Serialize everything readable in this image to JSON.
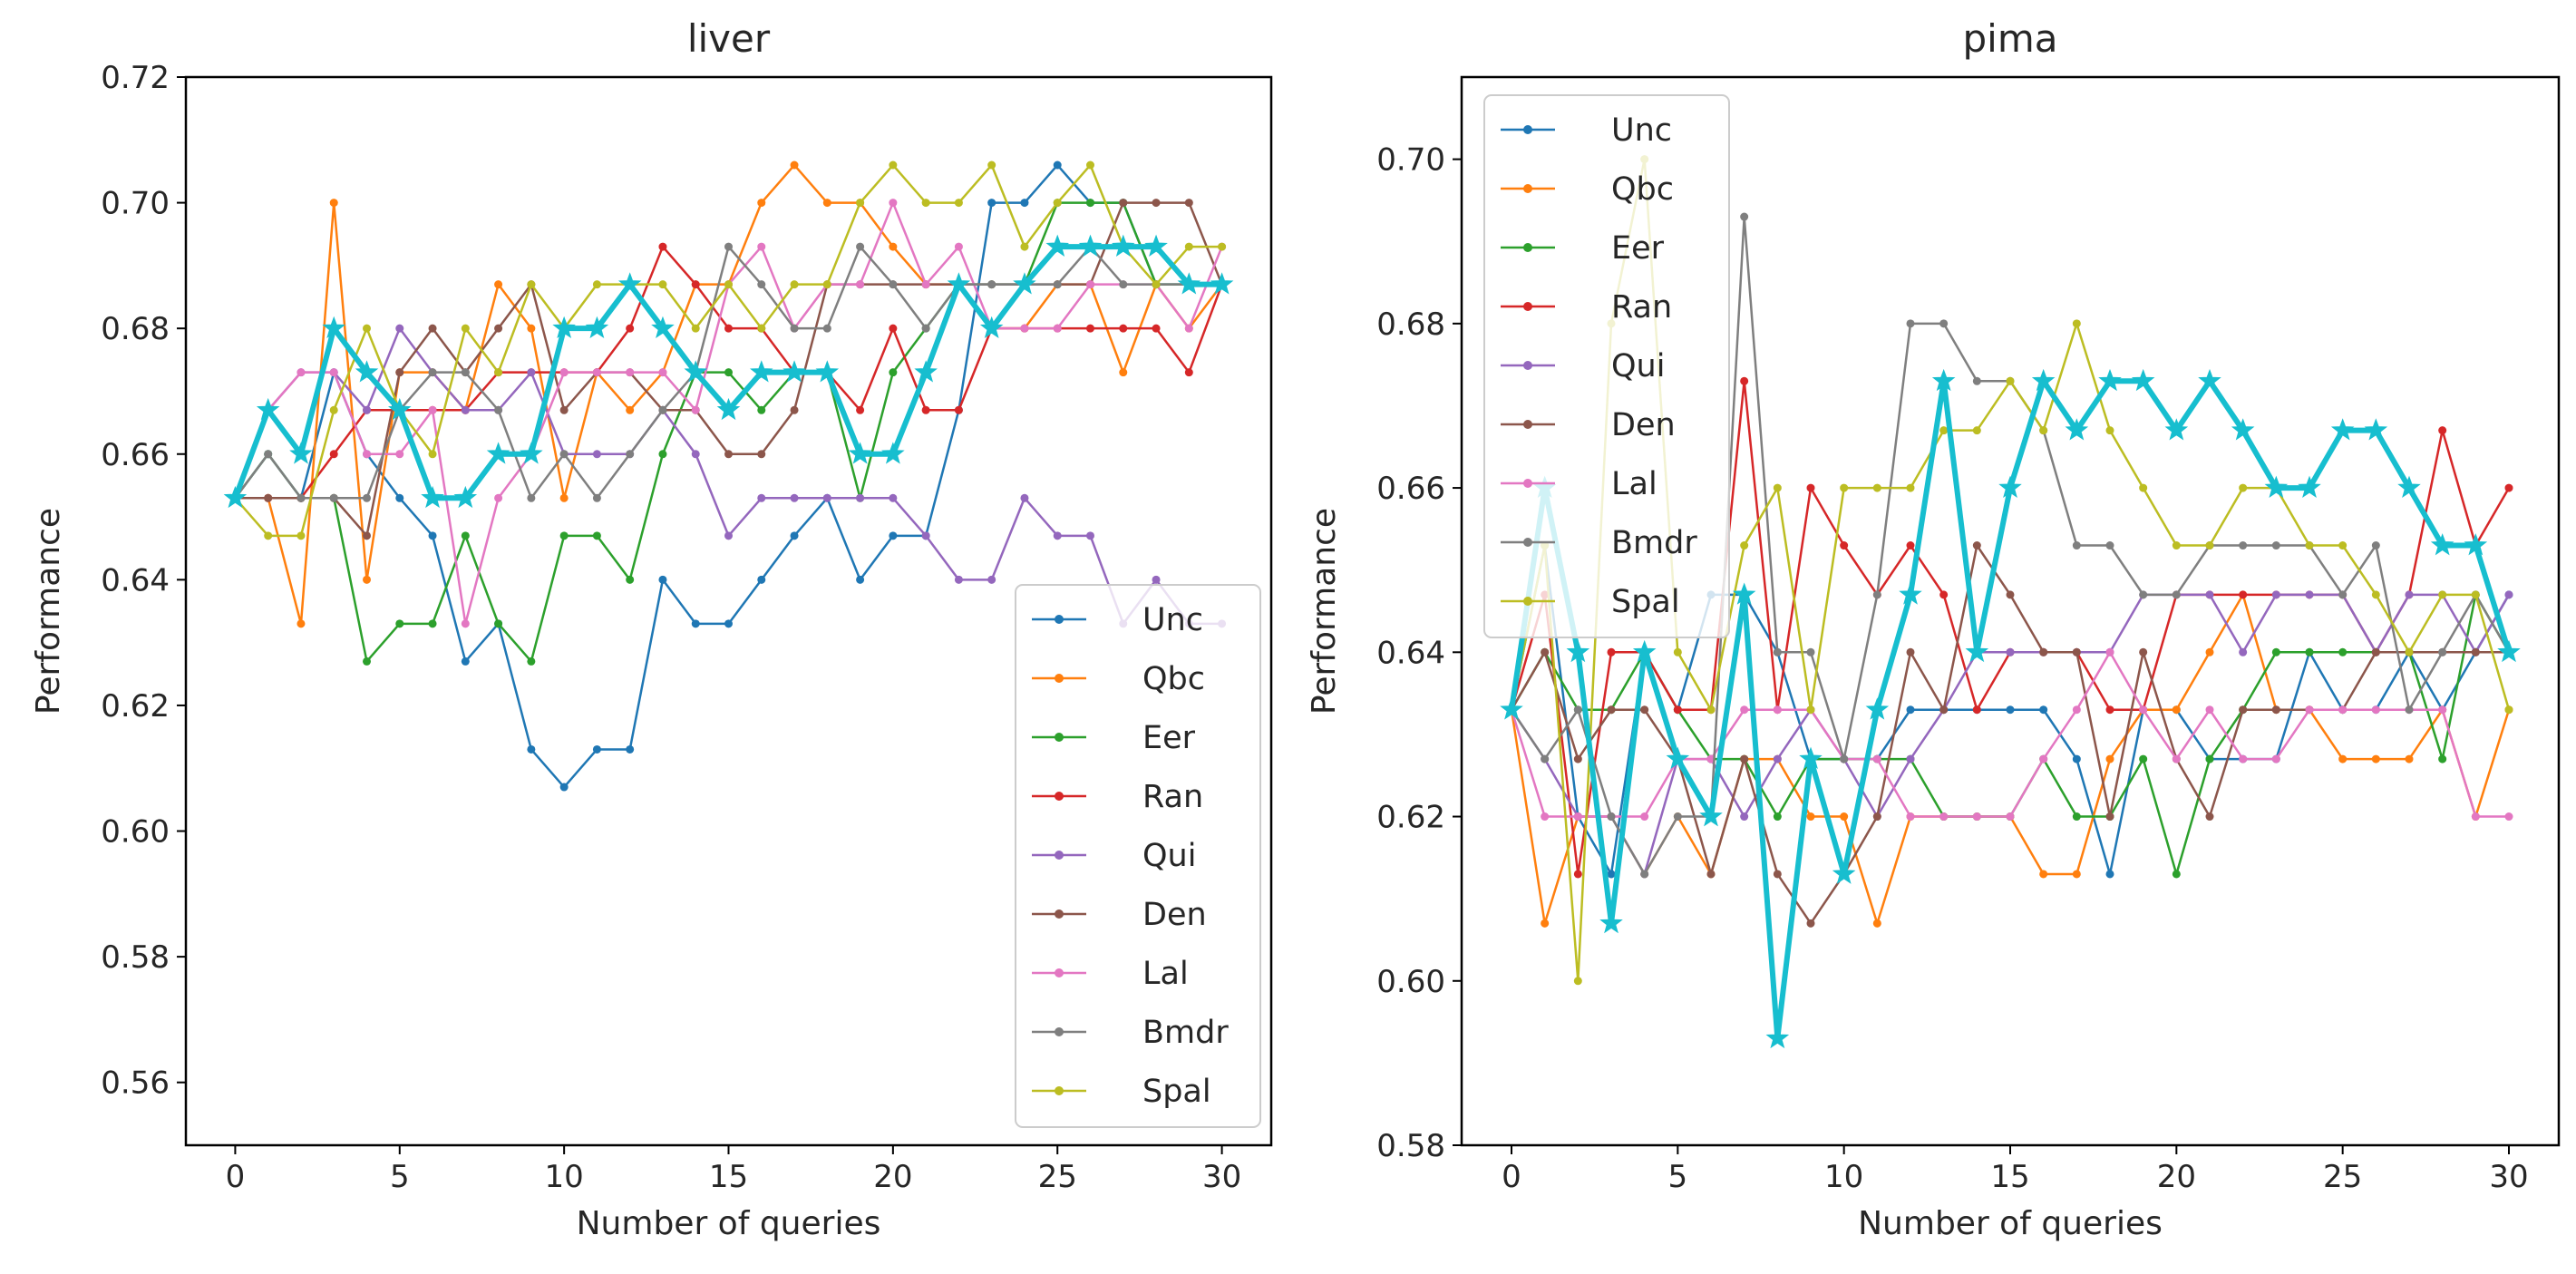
{
  "chart_data": [
    {
      "type": "line",
      "title": "liver",
      "xlabel": "Number of queries",
      "ylabel": "Performance",
      "xlim": [
        -1.5,
        31.5
      ],
      "ylim": [
        0.55,
        0.72
      ],
      "xticks": [
        0,
        5,
        10,
        15,
        20,
        25,
        30
      ],
      "xtick_labels": [
        "0",
        "5",
        "10",
        "15",
        "20",
        "25",
        "30"
      ],
      "yticks": [
        0.56,
        0.58,
        0.6,
        0.62,
        0.64,
        0.66,
        0.68,
        0.7,
        0.72
      ],
      "ytick_labels": [
        "0.56",
        "0.58",
        "0.60",
        "0.62",
        "0.64",
        "0.66",
        "0.68",
        "0.70",
        "0.72"
      ],
      "legend_position": "lower-right",
      "x": [
        0,
        1,
        2,
        3,
        4,
        5,
        6,
        7,
        8,
        9,
        10,
        11,
        12,
        13,
        14,
        15,
        16,
        17,
        18,
        19,
        20,
        21,
        22,
        23,
        24,
        25,
        26,
        27,
        28,
        29,
        30
      ],
      "series": [
        {
          "name": "Unc",
          "color": "#1f77b4",
          "marker": "dot",
          "width": 2.5,
          "values": [
            0.653,
            0.66,
            0.653,
            0.673,
            0.66,
            0.653,
            0.647,
            0.627,
            0.633,
            0.613,
            0.607,
            0.613,
            0.613,
            0.64,
            0.633,
            0.633,
            0.64,
            0.647,
            0.653,
            0.64,
            0.647,
            0.647,
            0.667,
            0.7,
            0.7,
            0.706,
            0.7,
            0.7,
            0.687,
            0.687,
            0.687
          ]
        },
        {
          "name": "Qbc",
          "color": "#ff7f0e",
          "marker": "dot",
          "width": 2.5,
          "values": [
            0.653,
            0.653,
            0.633,
            0.7,
            0.64,
            0.673,
            0.673,
            0.667,
            0.687,
            0.68,
            0.653,
            0.673,
            0.667,
            0.673,
            0.687,
            0.687,
            0.7,
            0.706,
            0.7,
            0.7,
            0.693,
            0.687,
            0.687,
            0.68,
            0.68,
            0.687,
            0.687,
            0.673,
            0.687,
            0.68,
            0.687
          ]
        },
        {
          "name": "Eer",
          "color": "#2ca02c",
          "marker": "dot",
          "width": 2.5,
          "values": [
            0.653,
            0.66,
            0.653,
            0.653,
            0.627,
            0.633,
            0.633,
            0.647,
            0.633,
            0.627,
            0.647,
            0.647,
            0.64,
            0.66,
            0.673,
            0.673,
            0.667,
            0.673,
            0.673,
            0.653,
            0.673,
            0.68,
            0.687,
            0.687,
            0.687,
            0.7,
            0.7,
            0.7,
            0.687,
            0.687,
            0.687
          ]
        },
        {
          "name": "Ran",
          "color": "#d62728",
          "marker": "dot",
          "width": 2.5,
          "values": [
            0.653,
            0.653,
            0.653,
            0.66,
            0.667,
            0.667,
            0.667,
            0.667,
            0.673,
            0.673,
            0.673,
            0.673,
            0.68,
            0.693,
            0.687,
            0.68,
            0.68,
            0.673,
            0.673,
            0.667,
            0.68,
            0.667,
            0.667,
            0.68,
            0.68,
            0.68,
            0.68,
            0.68,
            0.68,
            0.673,
            0.687
          ]
        },
        {
          "name": "Qui",
          "color": "#9467bd",
          "marker": "dot",
          "width": 2.5,
          "values": [
            0.653,
            0.667,
            0.673,
            0.673,
            0.667,
            0.68,
            0.673,
            0.667,
            0.667,
            0.673,
            0.66,
            0.66,
            0.66,
            0.667,
            0.66,
            0.647,
            0.653,
            0.653,
            0.653,
            0.653,
            0.653,
            0.647,
            0.64,
            0.64,
            0.653,
            0.647,
            0.647,
            0.633,
            0.64,
            0.633,
            0.633
          ]
        },
        {
          "name": "Den",
          "color": "#8c564b",
          "marker": "dot",
          "width": 2.5,
          "values": [
            0.653,
            0.653,
            0.653,
            0.653,
            0.647,
            0.673,
            0.68,
            0.673,
            0.68,
            0.687,
            0.667,
            0.673,
            0.673,
            0.667,
            0.667,
            0.66,
            0.66,
            0.667,
            0.687,
            0.687,
            0.687,
            0.687,
            0.687,
            0.687,
            0.687,
            0.687,
            0.687,
            0.7,
            0.7,
            0.7,
            0.687
          ]
        },
        {
          "name": "Lal",
          "color": "#e377c2",
          "marker": "dot",
          "width": 2.5,
          "values": [
            0.653,
            0.667,
            0.673,
            0.673,
            0.66,
            0.66,
            0.667,
            0.633,
            0.653,
            0.66,
            0.673,
            0.673,
            0.673,
            0.673,
            0.667,
            0.687,
            0.693,
            0.68,
            0.687,
            0.687,
            0.7,
            0.687,
            0.693,
            0.68,
            0.68,
            0.68,
            0.687,
            0.687,
            0.687,
            0.68,
            0.693
          ]
        },
        {
          "name": "Bmdr",
          "color": "#7f7f7f",
          "marker": "dot",
          "width": 2.5,
          "values": [
            0.653,
            0.66,
            0.653,
            0.653,
            0.653,
            0.667,
            0.673,
            0.673,
            0.667,
            0.653,
            0.66,
            0.653,
            0.66,
            0.667,
            0.673,
            0.693,
            0.687,
            0.68,
            0.68,
            0.693,
            0.687,
            0.68,
            0.687,
            0.687,
            0.687,
            0.687,
            0.693,
            0.687,
            0.687,
            0.687,
            0.687
          ]
        },
        {
          "name": "Spal",
          "color": "#bcbd22",
          "marker": "dot",
          "width": 2.5,
          "values": [
            0.653,
            0.647,
            0.647,
            0.667,
            0.68,
            0.667,
            0.66,
            0.68,
            0.673,
            0.687,
            0.68,
            0.687,
            0.687,
            0.687,
            0.68,
            0.687,
            0.68,
            0.687,
            0.687,
            0.7,
            0.706,
            0.7,
            0.7,
            0.706,
            0.693,
            0.7,
            0.706,
            0.693,
            0.687,
            0.693,
            0.693
          ]
        },
        {
          "name": "",
          "color": "#17becf",
          "marker": "star",
          "width": 6,
          "values": [
            0.653,
            0.667,
            0.66,
            0.68,
            0.673,
            0.667,
            0.653,
            0.653,
            0.66,
            0.66,
            0.68,
            0.68,
            0.687,
            0.68,
            0.673,
            0.667,
            0.673,
            0.673,
            0.673,
            0.66,
            0.66,
            0.673,
            0.687,
            0.68,
            0.687,
            0.693,
            0.693,
            0.693,
            0.693,
            0.687,
            0.687
          ]
        }
      ]
    },
    {
      "type": "line",
      "title": "pima",
      "xlabel": "Number of queries",
      "ylabel": "Performance",
      "xlim": [
        -1.5,
        31.5
      ],
      "ylim": [
        0.58,
        0.71
      ],
      "xticks": [
        0,
        5,
        10,
        15,
        20,
        25,
        30
      ],
      "xtick_labels": [
        "0",
        "5",
        "10",
        "15",
        "20",
        "25",
        "30"
      ],
      "yticks": [
        0.58,
        0.6,
        0.62,
        0.64,
        0.66,
        0.68,
        0.7
      ],
      "ytick_labels": [
        "0.58",
        "0.60",
        "0.62",
        "0.64",
        "0.66",
        "0.68",
        "0.70"
      ],
      "legend_position": "upper-left",
      "x": [
        0,
        1,
        2,
        3,
        4,
        5,
        6,
        7,
        8,
        9,
        10,
        11,
        12,
        13,
        14,
        15,
        16,
        17,
        18,
        19,
        20,
        21,
        22,
        23,
        24,
        25,
        26,
        27,
        28,
        29,
        30
      ],
      "series": [
        {
          "name": "Unc",
          "color": "#1f77b4",
          "marker": "dot",
          "width": 2.5,
          "values": [
            0.633,
            0.653,
            0.62,
            0.613,
            0.64,
            0.633,
            0.647,
            0.647,
            0.64,
            0.627,
            0.627,
            0.627,
            0.633,
            0.633,
            0.633,
            0.633,
            0.633,
            0.627,
            0.613,
            0.633,
            0.633,
            0.627,
            0.627,
            0.627,
            0.64,
            0.633,
            0.633,
            0.64,
            0.633,
            0.64,
            0.647
          ]
        },
        {
          "name": "Qbc",
          "color": "#ff7f0e",
          "marker": "dot",
          "width": 2.5,
          "values": [
            0.633,
            0.607,
            0.62,
            0.62,
            0.613,
            0.62,
            0.613,
            0.627,
            0.627,
            0.62,
            0.62,
            0.607,
            0.62,
            0.62,
            0.62,
            0.62,
            0.613,
            0.613,
            0.627,
            0.633,
            0.633,
            0.64,
            0.647,
            0.633,
            0.633,
            0.627,
            0.627,
            0.627,
            0.633,
            0.62,
            0.633
          ]
        },
        {
          "name": "Eer",
          "color": "#2ca02c",
          "marker": "dot",
          "width": 2.5,
          "values": [
            0.633,
            0.64,
            0.633,
            0.633,
            0.64,
            0.633,
            0.627,
            0.627,
            0.62,
            0.627,
            0.627,
            0.627,
            0.627,
            0.62,
            0.62,
            0.62,
            0.627,
            0.62,
            0.62,
            0.627,
            0.613,
            0.627,
            0.633,
            0.64,
            0.64,
            0.64,
            0.64,
            0.64,
            0.627,
            0.647,
            0.64
          ]
        },
        {
          "name": "Ran",
          "color": "#d62728",
          "marker": "dot",
          "width": 2.5,
          "values": [
            0.633,
            0.647,
            0.613,
            0.64,
            0.64,
            0.633,
            0.633,
            0.673,
            0.633,
            0.66,
            0.653,
            0.647,
            0.653,
            0.647,
            0.633,
            0.64,
            0.64,
            0.64,
            0.633,
            0.633,
            0.647,
            0.647,
            0.647,
            0.647,
            0.647,
            0.647,
            0.64,
            0.647,
            0.667,
            0.653,
            0.66
          ]
        },
        {
          "name": "Qui",
          "color": "#9467bd",
          "marker": "dot",
          "width": 2.5,
          "values": [
            0.633,
            0.627,
            0.62,
            0.62,
            0.613,
            0.627,
            0.627,
            0.62,
            0.627,
            0.633,
            0.627,
            0.62,
            0.627,
            0.633,
            0.64,
            0.64,
            0.64,
            0.64,
            0.64,
            0.647,
            0.647,
            0.647,
            0.64,
            0.647,
            0.647,
            0.647,
            0.64,
            0.647,
            0.647,
            0.64,
            0.647
          ]
        },
        {
          "name": "Den",
          "color": "#8c564b",
          "marker": "dot",
          "width": 2.5,
          "values": [
            0.633,
            0.64,
            0.627,
            0.633,
            0.633,
            0.627,
            0.613,
            0.627,
            0.613,
            0.607,
            0.613,
            0.62,
            0.64,
            0.633,
            0.653,
            0.647,
            0.64,
            0.64,
            0.62,
            0.64,
            0.627,
            0.62,
            0.633,
            0.633,
            0.633,
            0.633,
            0.64,
            0.64,
            0.64,
            0.64,
            0.64
          ]
        },
        {
          "name": "Lal",
          "color": "#e377c2",
          "marker": "dot",
          "width": 2.5,
          "values": [
            0.633,
            0.62,
            0.62,
            0.62,
            0.62,
            0.627,
            0.627,
            0.633,
            0.633,
            0.633,
            0.627,
            0.627,
            0.62,
            0.62,
            0.62,
            0.62,
            0.627,
            0.633,
            0.64,
            0.633,
            0.627,
            0.633,
            0.627,
            0.627,
            0.633,
            0.633,
            0.633,
            0.633,
            0.633,
            0.62,
            0.62
          ]
        },
        {
          "name": "Bmdr",
          "color": "#7f7f7f",
          "marker": "dot",
          "width": 2.5,
          "values": [
            0.633,
            0.627,
            0.633,
            0.62,
            0.613,
            0.62,
            0.62,
            0.693,
            0.64,
            0.64,
            0.627,
            0.647,
            0.68,
            0.68,
            0.673,
            0.673,
            0.667,
            0.653,
            0.653,
            0.647,
            0.647,
            0.653,
            0.653,
            0.653,
            0.653,
            0.647,
            0.653,
            0.633,
            0.64,
            0.647,
            0.64
          ]
        },
        {
          "name": "Spal",
          "color": "#bcbd22",
          "marker": "dot",
          "width": 2.5,
          "values": [
            0.633,
            0.653,
            0.6,
            0.68,
            0.7,
            0.64,
            0.633,
            0.653,
            0.66,
            0.633,
            0.66,
            0.66,
            0.66,
            0.667,
            0.667,
            0.673,
            0.667,
            0.68,
            0.667,
            0.66,
            0.653,
            0.653,
            0.66,
            0.66,
            0.653,
            0.653,
            0.647,
            0.64,
            0.647,
            0.647,
            0.633
          ]
        },
        {
          "name": "",
          "color": "#17becf",
          "marker": "star",
          "width": 6,
          "values": [
            0.633,
            0.66,
            0.64,
            0.607,
            0.64,
            0.627,
            0.62,
            0.647,
            0.593,
            0.627,
            0.613,
            0.633,
            0.647,
            0.673,
            0.64,
            0.66,
            0.673,
            0.667,
            0.673,
            0.673,
            0.667,
            0.673,
            0.667,
            0.66,
            0.66,
            0.667,
            0.667,
            0.66,
            0.653,
            0.653,
            0.64
          ]
        }
      ]
    }
  ]
}
